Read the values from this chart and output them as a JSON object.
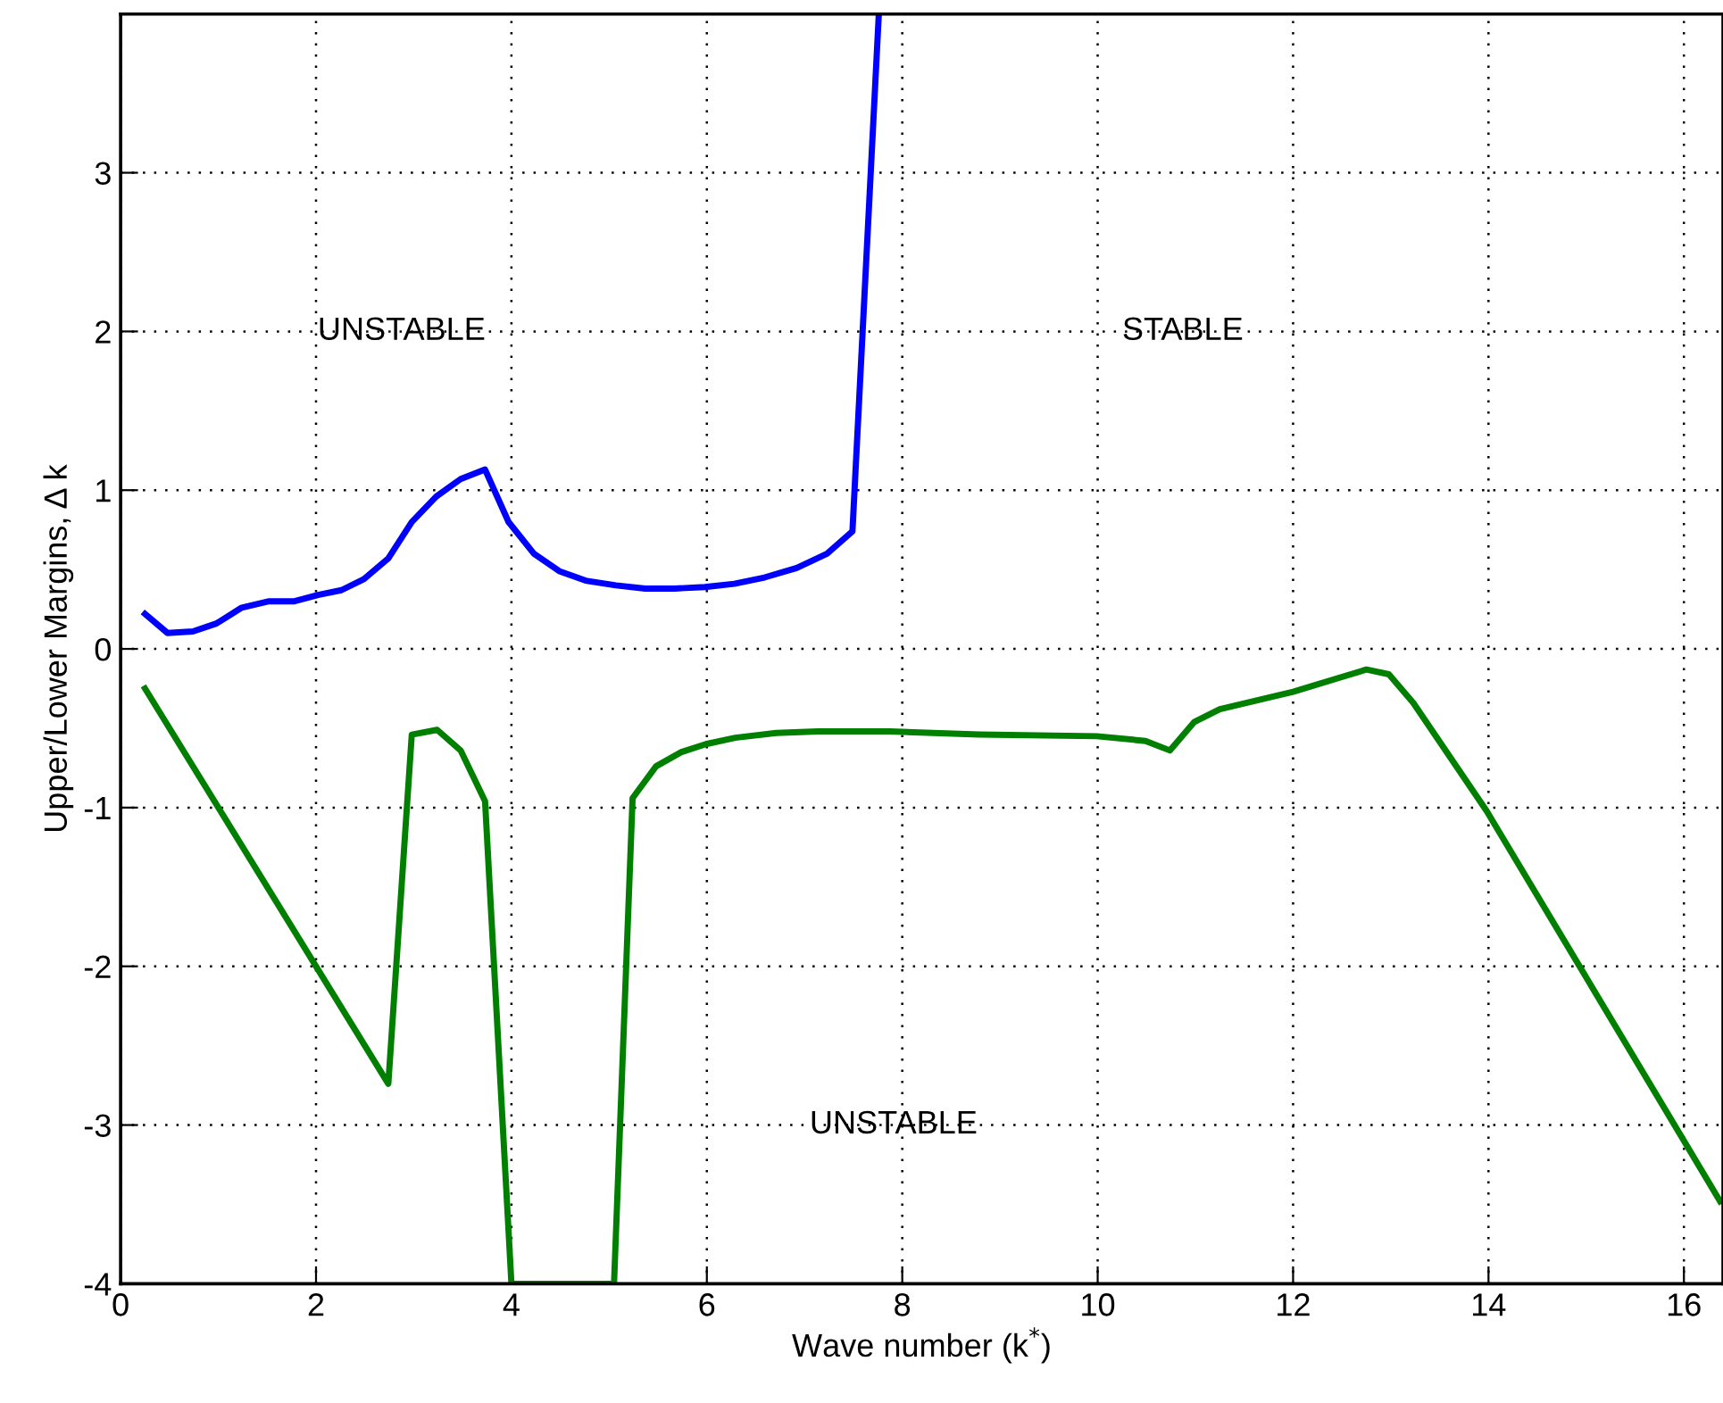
{
  "chart_data": {
    "type": "line",
    "xlabel": "Wave number (k$^{*}$)",
    "ylabel": "Upper/Lower Margins, Δ k",
    "xlim": [
      0,
      16.4
    ],
    "xticks": [
      0,
      2,
      4,
      6,
      8,
      10,
      12,
      14,
      16
    ],
    "ylim": [
      -4,
      4
    ],
    "yticks": [
      -4,
      -3,
      -2,
      -1,
      0,
      1,
      2,
      3
    ],
    "grid": true,
    "line_style": "solid",
    "marker": "none",
    "annotations": [
      "UNSTABLE",
      "STABLE",
      "UNSTABLE"
    ],
    "series": [
      {
        "color": "#0000ff",
        "x": [
          0.25,
          0.48,
          0.74,
          0.98,
          1.24,
          1.52,
          1.78,
          2.02,
          2.26,
          2.49,
          2.74,
          2.98,
          3.23,
          3.48,
          3.73,
          3.97,
          4.23,
          4.49,
          4.76,
          5.07,
          5.37,
          5.67,
          5.98,
          6.28,
          6.59,
          6.92,
          7.23,
          7.49,
          7.76
        ],
        "values": [
          0.22,
          0.1,
          0.11,
          0.16,
          0.26,
          0.3,
          0.3,
          0.34,
          0.37,
          0.44,
          0.57,
          0.8,
          0.96,
          1.07,
          1.13,
          0.8,
          0.6,
          0.49,
          0.43,
          0.4,
          0.38,
          0.38,
          0.39,
          0.41,
          0.45,
          0.51,
          0.6,
          0.74,
          4.0
        ]
      },
      {
        "color": "#007f00",
        "x": [
          0.25,
          2.74,
          2.98,
          3.24,
          3.48,
          3.73,
          4.0,
          5.05,
          5.24,
          5.48,
          5.74,
          5.99,
          6.29,
          6.71,
          7.14,
          7.87,
          8.79,
          9.99,
          10.49,
          10.74,
          10.99,
          11.25,
          12.0,
          12.75,
          12.98,
          13.23,
          13.98,
          16.37
        ],
        "values": [
          -0.25,
          -2.74,
          -0.54,
          -0.51,
          -0.64,
          -0.96,
          -4.0,
          -4.0,
          -0.94,
          -0.74,
          -0.65,
          -0.6,
          -0.56,
          -0.53,
          -0.52,
          -0.52,
          -0.54,
          -0.55,
          -0.58,
          -0.64,
          -0.46,
          -0.38,
          -0.27,
          -0.13,
          -0.16,
          -0.34,
          -1.02,
          -3.48
        ]
      }
    ]
  }
}
